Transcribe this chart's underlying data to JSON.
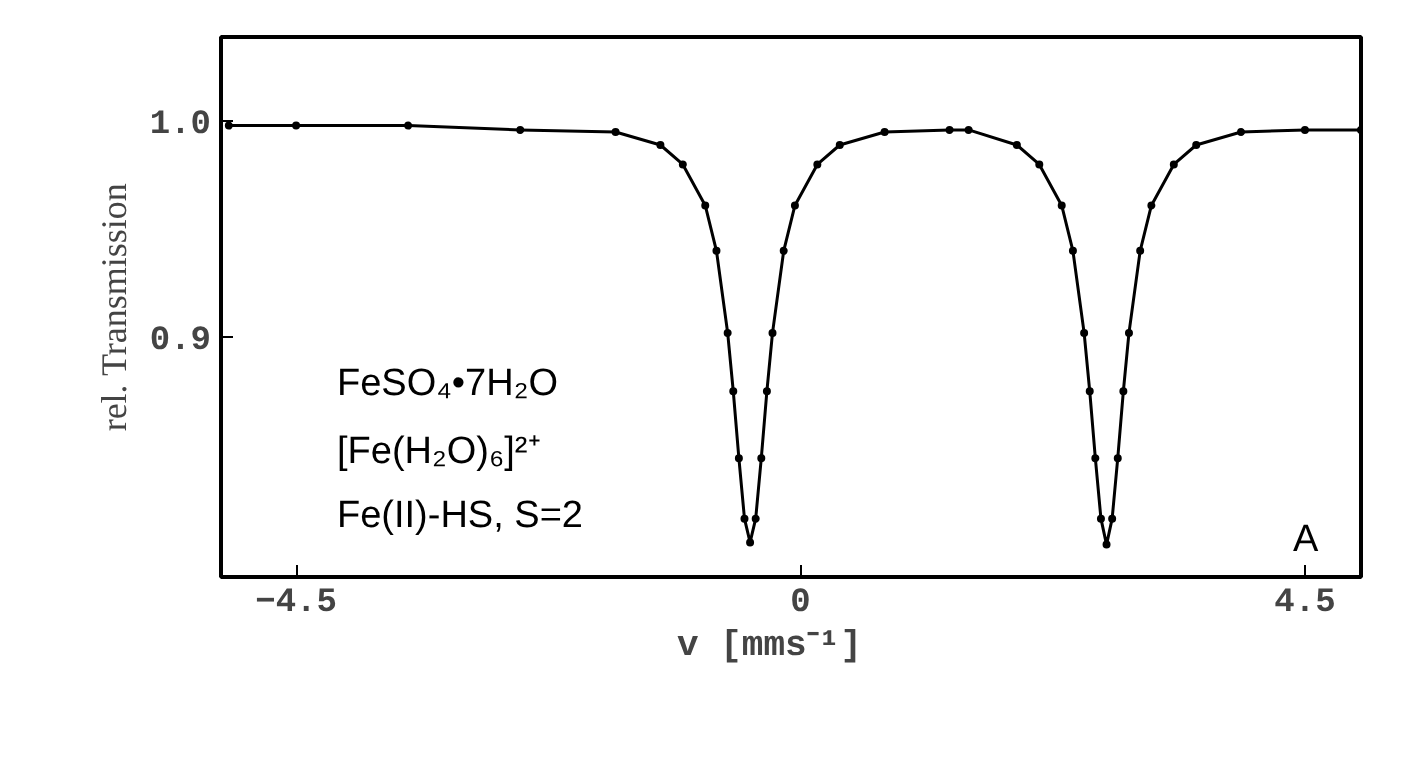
{
  "chart_data": {
    "type": "line",
    "xlabel": "v   [mms⁻¹]",
    "ylabel": "rel. Transmission",
    "x": [
      -5.1,
      -4.5,
      -3.5,
      -2.5,
      -1.65,
      -1.25,
      -1.05,
      -0.85,
      -0.75,
      -0.65,
      -0.6,
      -0.55,
      -0.5,
      -0.45,
      -0.4,
      -0.35,
      -0.3,
      -0.25,
      -0.15,
      -0.05,
      0.15,
      0.35,
      0.75,
      1.33,
      1.5,
      1.93,
      2.13,
      2.33,
      2.43,
      2.53,
      2.58,
      2.63,
      2.68,
      2.73,
      2.78,
      2.83,
      2.88,
      2.93,
      3.03,
      3.13,
      3.33,
      3.53,
      3.93,
      4.5,
      5.0
    ],
    "series": [
      {
        "color": "#000000",
        "values": [
          0.998,
          0.998,
          0.998,
          0.996,
          0.995,
          0.989,
          0.98,
          0.961,
          0.94,
          0.902,
          0.875,
          0.844,
          0.816,
          0.805,
          0.816,
          0.844,
          0.875,
          0.902,
          0.94,
          0.961,
          0.98,
          0.989,
          0.995,
          0.996,
          0.996,
          0.989,
          0.98,
          0.961,
          0.94,
          0.902,
          0.875,
          0.844,
          0.816,
          0.804,
          0.816,
          0.844,
          0.875,
          0.902,
          0.94,
          0.961,
          0.98,
          0.989,
          0.995,
          0.996,
          0.996
        ]
      }
    ],
    "xlim": [
      -5.17,
      5.0
    ],
    "ylim": [
      0.789,
      1.039
    ],
    "xticks": [
      -4.5,
      0,
      4.5
    ],
    "yticks": [
      {
        "value": 1.0,
        "label": "1.0"
      },
      0.9
    ],
    "marker": "circle",
    "line_style": "solid",
    "grid": false,
    "annotations": [
      "FeSO₄•7H₂O",
      "[Fe(H₂O)₆]²⁺",
      "Fe(II)-HS, S=2",
      "A"
    ]
  }
}
